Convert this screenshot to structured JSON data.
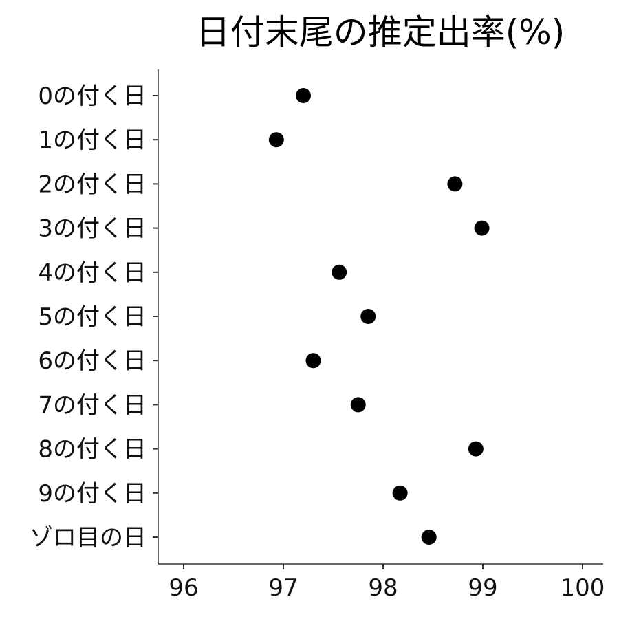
{
  "chart_data": {
    "type": "scatter",
    "title": "日付末尾の推定出率(%)",
    "xlabel": "",
    "ylabel": "",
    "xlim": [
      95.75,
      102.2
    ],
    "xticks": [
      96,
      97,
      98,
      99,
      100
    ],
    "xtick_labels": [
      "96",
      "97",
      "98",
      "99",
      "100"
    ],
    "categories": [
      "0の付く日",
      "1の付く日",
      "2の付く日",
      "3の付く日",
      "4の付く日",
      "5の付く日",
      "6の付く日",
      "7の付く日",
      "8の付く日",
      "9の付く日",
      "ゾロ目の日"
    ],
    "values": [
      97.2,
      96.93,
      98.72,
      98.99,
      97.56,
      97.85,
      97.3,
      97.75,
      98.93,
      98.17,
      98.46
    ],
    "grid": false,
    "legend": "none",
    "point_color": "#000000"
  }
}
